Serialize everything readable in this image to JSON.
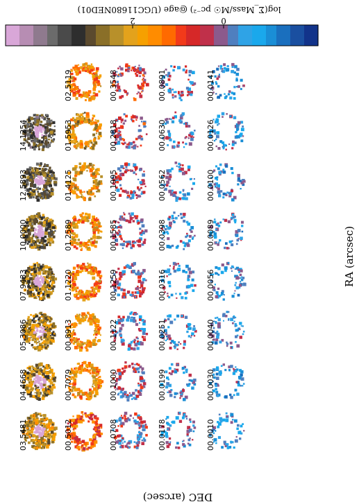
{
  "chart_data": {
    "type": "heatmap",
    "colorbar": {
      "label": "log(Σ_Mass/M☉ pc⁻²) @age (UGC11680NED01)",
      "ticks": [
        "0",
        "2"
      ],
      "colors": [
        "#d9a7d8",
        "#b78db3",
        "#8f7a8e",
        "#6b6b6b",
        "#4a4a4a",
        "#2e2e2e",
        "#5b4a2e",
        "#8a6f28",
        "#b8902a",
        "#e3a21c",
        "#f6a000",
        "#ff8c00",
        "#ff6a00",
        "#f23a1a",
        "#d62828",
        "#c0304a",
        "#8c5a8c",
        "#4f7fbf",
        "#2fa3e6",
        "#1aa8ec",
        "#1a8ed6",
        "#1a6fbe",
        "#1a4fa0",
        "#12338a"
      ]
    },
    "xlabel": "RA (arcsec)",
    "ylabel": "DEC (arcsec)",
    "ages": [
      [
        "03.5481",
        "04.4668",
        "05.3086",
        "07.9433",
        "10.0000",
        "12.5893",
        "14.1254"
      ],
      [
        "00.5012",
        "00.7079",
        "00.8913",
        "01.1220",
        "01.2589",
        "01.4125",
        "01.5953",
        "02.5119"
      ],
      [
        "00.0708",
        "00.1000",
        "00.1122",
        "00.1259",
        "00.1585",
        "00.1995",
        "00.2818",
        "00.3548"
      ],
      [
        "00.0178",
        "00.0199",
        "00.0251",
        "00.0316",
        "00.0398",
        "00.0562",
        "00.0630",
        "00.0891"
      ],
      [
        "00.0010",
        "00.0030",
        "00.0040",
        "00.0056",
        "00.0089",
        "00.0100",
        "00.0126",
        "00.0141"
      ]
    ],
    "panel_level": [
      [
        1.8,
        1.9,
        1.9,
        2.0,
        2.2,
        2.3,
        2.4
      ],
      [
        1.1,
        1.5,
        1.5,
        1.4,
        1.5,
        1.6,
        1.7,
        1.4
      ],
      [
        0.6,
        0.6,
        0.5,
        0.6,
        0.6,
        0.6,
        0.7,
        0.8
      ],
      [
        0.3,
        0.3,
        0.3,
        0.3,
        0.3,
        0.4,
        0.4,
        0.5
      ],
      [
        0.2,
        0.2,
        0.2,
        0.2,
        0.2,
        0.2,
        0.2,
        0.2
      ]
    ]
  }
}
